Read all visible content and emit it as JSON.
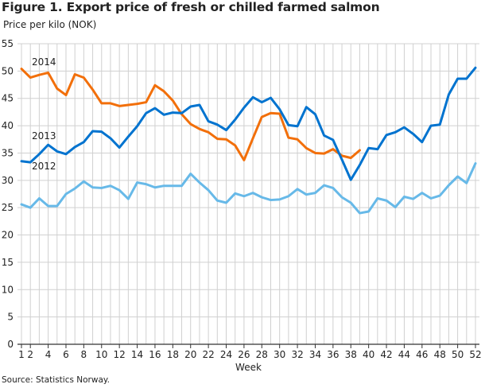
{
  "chart_data": {
    "type": "line",
    "title": "Figure 1. Export price of fresh or chilled farmed salmon",
    "ylabel": "Price per kilo (NOK)",
    "xlabel": "Week",
    "source": "Source: Statistics Norway.",
    "ylim": [
      0,
      55
    ],
    "yticks": [
      "0",
      "5",
      "10",
      "15",
      "20",
      "25",
      "30",
      "35",
      "40",
      "45",
      "50",
      "55"
    ],
    "xlim": [
      1,
      52
    ],
    "xticks": [
      "1",
      "2",
      "4",
      "6",
      "8",
      "10",
      "12",
      "14",
      "16",
      "18",
      "20",
      "22",
      "24",
      "26",
      "28",
      "30",
      "32",
      "34",
      "36",
      "38",
      "40",
      "42",
      "44",
      "46",
      "48",
      "50",
      "52"
    ],
    "grid": true,
    "series": [
      {
        "name": "2014",
        "color": "#f26f0a",
        "start_week": 1,
        "values": [
          50.4,
          48.8,
          49.3,
          49.7,
          46.8,
          45.6,
          49.4,
          48.8,
          46.6,
          44.1,
          44.1,
          43.6,
          43.8,
          44.0,
          44.3,
          47.4,
          46.3,
          44.6,
          42.1,
          40.3,
          39.4,
          38.8,
          37.6,
          37.5,
          36.4,
          33.7,
          37.7,
          41.6,
          42.3,
          42.2,
          37.8,
          37.5,
          35.9,
          35.0,
          34.9,
          35.7,
          34.5,
          34.1,
          35.5
        ]
      },
      {
        "name": "2013",
        "color": "#0073cf",
        "start_week": 1,
        "values": [
          33.5,
          33.3,
          34.8,
          36.5,
          35.3,
          34.8,
          36.1,
          37.0,
          39.0,
          38.9,
          37.7,
          36.0,
          38.0,
          39.9,
          42.3,
          43.2,
          42.0,
          42.4,
          42.3,
          43.5,
          43.8,
          40.8,
          40.2,
          39.2,
          41.1,
          43.3,
          45.2,
          44.3,
          45.1,
          43.0,
          40.1,
          39.9,
          43.4,
          42.1,
          38.2,
          37.4,
          33.8,
          30.1,
          32.8,
          35.9,
          35.7,
          38.3,
          38.8,
          39.7,
          38.5,
          37.0,
          40.0,
          40.2,
          45.7,
          48.6,
          48.6,
          50.6
        ]
      },
      {
        "name": "2012",
        "color": "#67b9e8",
        "start_week": 1,
        "values": [
          25.6,
          25.0,
          26.7,
          25.3,
          25.3,
          27.5,
          28.5,
          29.8,
          28.7,
          28.6,
          29.0,
          28.2,
          26.6,
          29.6,
          29.3,
          28.7,
          29.0,
          29.0,
          29.0,
          31.2,
          29.6,
          28.2,
          26.3,
          25.9,
          27.6,
          27.1,
          27.7,
          26.9,
          26.4,
          26.5,
          27.1,
          28.4,
          27.4,
          27.7,
          29.1,
          28.6,
          26.9,
          25.9,
          24.0,
          24.3,
          26.7,
          26.3,
          25.1,
          27.0,
          26.6,
          27.7,
          26.7,
          27.2,
          29.1,
          30.7,
          29.5,
          33.1
        ]
      }
    ]
  }
}
